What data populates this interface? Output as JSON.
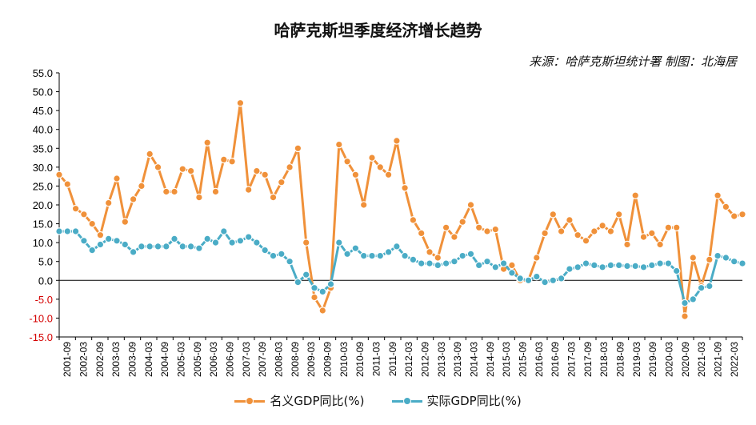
{
  "title": "哈萨克斯坦季度经济增长趋势",
  "source": "来源：哈萨克斯坦统计署 制图：北海居",
  "colors": {
    "nominal": "#F0913A",
    "real": "#4AACC6",
    "axis": "#000000"
  },
  "chart_data": {
    "type": "line",
    "ylim": [
      -15,
      55
    ],
    "ytick_step": 5,
    "yticks": [
      "55.0",
      "50.0",
      "45.0",
      "40.0",
      "35.0",
      "30.0",
      "25.0",
      "20.0",
      "15.0",
      "10.0",
      "5.0",
      "0.0",
      "-5.0",
      "-10.0",
      "-15.0"
    ],
    "x_tick_labels": [
      "2001-09",
      "2002-03",
      "2002-09",
      "2003-03",
      "2003-09",
      "2004-03",
      "2004-09",
      "2005-03",
      "2005-09",
      "2006-03",
      "2006-09",
      "2007-03",
      "2007-09",
      "2008-03",
      "2008-09",
      "2009-03",
      "2009-09",
      "2010-03",
      "2010-09",
      "2011-03",
      "2011-09",
      "2012-03",
      "2012-09",
      "2013-03",
      "2013-09",
      "2014-03",
      "2014-09",
      "2015-03",
      "2015-09",
      "2016-03",
      "2016-09",
      "2017-03",
      "2017-09",
      "2018-03",
      "2018-09",
      "2019-03",
      "2019-09",
      "2020-03",
      "2020-09",
      "2021-03",
      "2021-09",
      "2022-03"
    ],
    "series": [
      {
        "name": "名义GDP同比(%)",
        "color": "#F0913A",
        "values": [
          28.0,
          25.5,
          19,
          17.5,
          15,
          12,
          20.5,
          27,
          15.5,
          21.5,
          25,
          33.5,
          30,
          23.5,
          23.5,
          29.5,
          29,
          22,
          36.5,
          23.5,
          32,
          31.5,
          47,
          24,
          29,
          28,
          22,
          26,
          30,
          35,
          10,
          -4.5,
          -8,
          -2,
          36,
          31.5,
          28,
          20,
          32.5,
          30,
          28,
          37,
          24.5,
          16,
          12.5,
          7.5,
          6,
          14,
          11.5,
          15.5,
          20,
          14,
          13,
          13.5,
          3,
          4,
          0,
          0,
          6,
          12.5,
          17.5,
          13,
          16,
          12,
          10.5,
          13,
          14.5,
          13,
          17.5,
          9.5,
          22.5,
          11.5,
          12.5,
          9.5,
          14,
          14,
          -9.5,
          6,
          -1.5,
          5.5,
          22.5,
          19.5,
          17,
          17.5
        ]
      },
      {
        "name": "实际GDP同比(%)",
        "color": "#4AACC6",
        "values": [
          13,
          13,
          13,
          10.5,
          8,
          9.5,
          11,
          10.5,
          9.5,
          7.5,
          9,
          9,
          9,
          9,
          11,
          9,
          9,
          8.5,
          11,
          10,
          13,
          10,
          10.5,
          11.5,
          10,
          8,
          6.5,
          7,
          5,
          -0.5,
          1.5,
          -2,
          -3,
          -1,
          10,
          7,
          8.5,
          6.5,
          6.5,
          6.5,
          7.5,
          9,
          6.5,
          5.5,
          4.5,
          4.5,
          4,
          4.5,
          5,
          6.5,
          7,
          4,
          5,
          3.5,
          4.5,
          2,
          0.5,
          0,
          1,
          -0.5,
          0,
          0.5,
          3,
          3.5,
          4.5,
          4,
          3.5,
          4,
          4,
          3.8,
          3.8,
          3.5,
          4,
          4.5,
          4.5,
          2.5,
          -6,
          -5,
          -2,
          -1.5,
          6.5,
          6,
          5,
          4.5
        ]
      }
    ]
  }
}
